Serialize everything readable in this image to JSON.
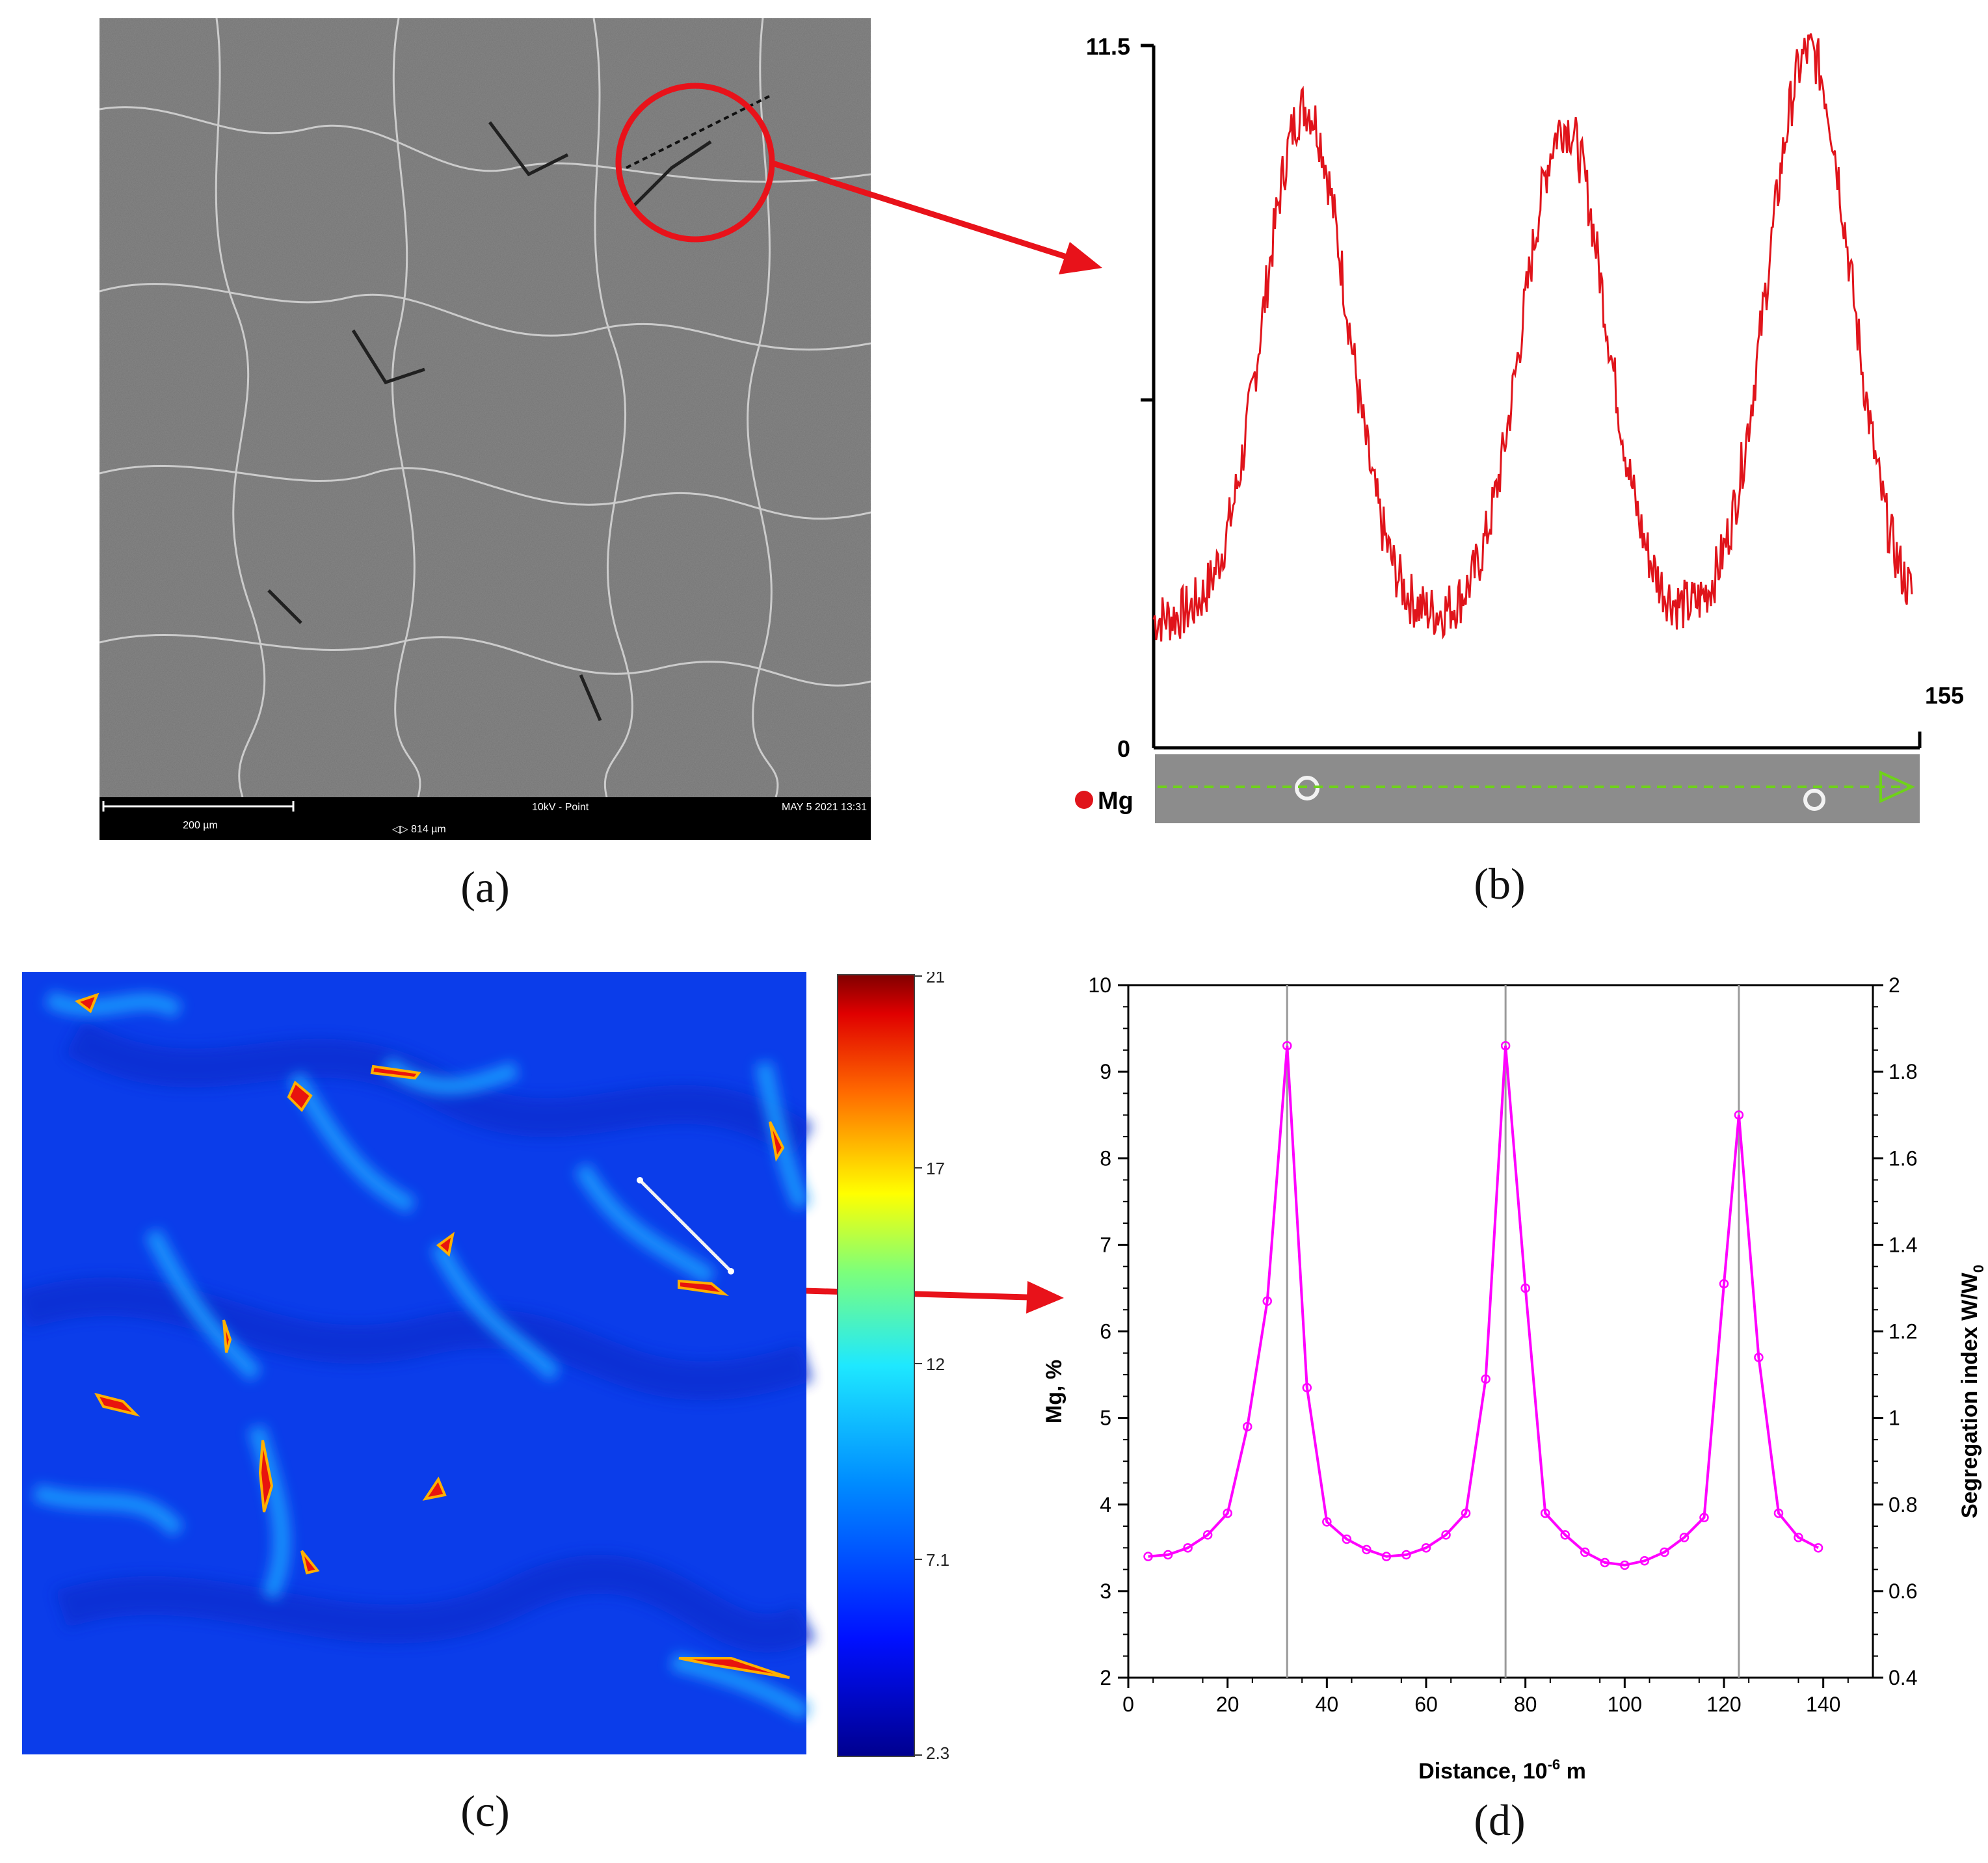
{
  "captions": {
    "a": "(a)",
    "b": "(b)",
    "c": "(c)",
    "d": "(d)"
  },
  "panel_a": {
    "scale_bar_label": "200 µm",
    "field_width": "◁▷ 814 µm",
    "mode": "10kV - Point",
    "datetime": "MAY 5 2021 13:31"
  },
  "panel_b": {
    "y_top_label": "11.5",
    "y_bottom_label": "0",
    "x_end_label": "155",
    "legend": "Mg",
    "line_color": "#e0141b"
  },
  "panel_c": {
    "colorbar_ticks": [
      "21",
      "17",
      "12",
      "7.1",
      "2.3"
    ]
  },
  "chart_data": [
    {
      "type": "line",
      "panel": "b",
      "title": "",
      "ylim": [
        0,
        11.5
      ],
      "xlim": [
        0,
        155
      ],
      "series": [
        {
          "name": "Mg",
          "peaks_x": [
            31,
            84,
            134
          ],
          "peaks_y": [
            10.5,
            10.2,
            11.4
          ],
          "baseline": 2.1
        }
      ]
    },
    {
      "type": "line",
      "panel": "d",
      "xlabel": "Distance, 10",
      "xlabel_sup": "-6",
      "xlabel_tail": " m",
      "ylabel": "Mg, %",
      "ylabel2": "Segregation index W/W",
      "ylabel2_sub": "0",
      "xlim": [
        0,
        150
      ],
      "ylim": [
        2,
        10
      ],
      "y2lim": [
        0.4,
        2
      ],
      "xticks": [
        "0",
        "20",
        "40",
        "60",
        "80",
        "100",
        "120",
        "140"
      ],
      "yticks": [
        "2",
        "3",
        "4",
        "5",
        "6",
        "7",
        "8",
        "9",
        "10"
      ],
      "y2ticks": [
        "0.4",
        "0.6",
        "0.8",
        "1",
        "1.2",
        "1.4",
        "1.6",
        "1.8",
        "2"
      ],
      "vlines": [
        32,
        76,
        123
      ],
      "series": [
        {
          "name": "Mg",
          "color": "#ff00ff",
          "x": [
            4,
            8,
            12,
            16,
            20,
            24,
            28,
            32,
            36,
            40,
            44,
            48,
            52,
            56,
            60,
            64,
            68,
            72,
            76,
            80,
            84,
            88,
            92,
            96,
            100,
            104,
            108,
            112,
            116,
            120,
            123,
            127,
            131,
            135,
            139
          ],
          "y": [
            3.4,
            3.42,
            3.5,
            3.65,
            3.9,
            4.9,
            6.35,
            9.3,
            5.35,
            3.8,
            3.6,
            3.48,
            3.4,
            3.42,
            3.5,
            3.65,
            3.9,
            5.45,
            9.3,
            6.5,
            3.9,
            3.65,
            3.45,
            3.33,
            3.3,
            3.35,
            3.45,
            3.62,
            3.85,
            6.55,
            8.5,
            5.7,
            3.9,
            3.62,
            3.5
          ]
        }
      ]
    }
  ]
}
